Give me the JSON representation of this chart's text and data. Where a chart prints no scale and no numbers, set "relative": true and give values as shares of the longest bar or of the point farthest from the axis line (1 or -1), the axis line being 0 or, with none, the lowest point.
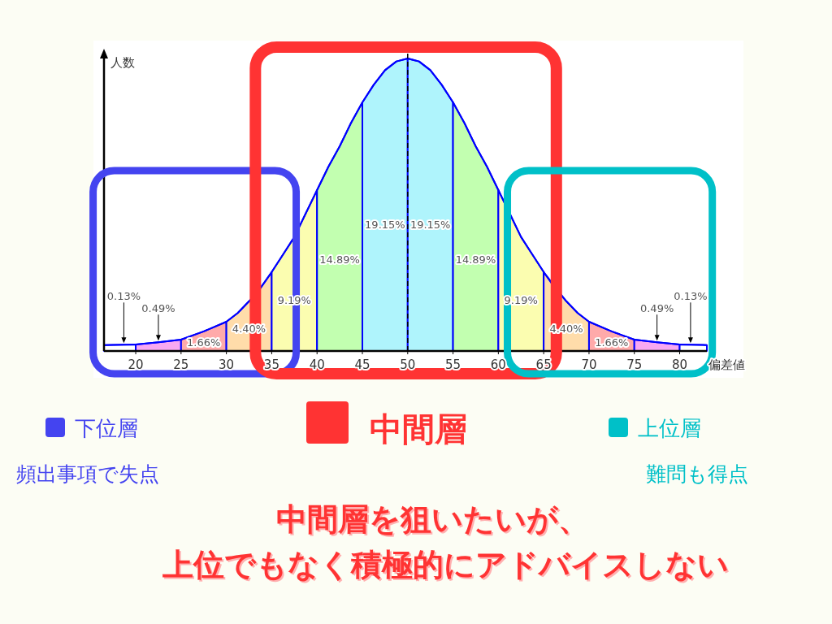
{
  "chart_data": {
    "type": "area",
    "relative": true,
    "ylabel": "人数",
    "xlabel": "偏差値",
    "xlim": [
      16.5,
      83
    ],
    "xticks": [
      20,
      25,
      30,
      35,
      40,
      45,
      50,
      55,
      60,
      65,
      70,
      75,
      80
    ],
    "series": [
      {
        "color": "#ffffff",
        "x": [
          16.5,
          17.5,
          20
        ],
        "values": [
          0.02,
          0.021,
          0.022
        ]
      },
      {
        "color": "#f9a8f2",
        "x": [
          20,
          22.5,
          25
        ],
        "values": [
          0.022,
          0.03,
          0.039
        ]
      },
      {
        "color": "#ffaaaa",
        "x": [
          25,
          27.5,
          30
        ],
        "values": [
          0.039,
          0.067,
          0.1
        ]
      },
      {
        "color": "#ffdcaa",
        "x": [
          30,
          31.25,
          32.5,
          33.75,
          35
        ],
        "values": [
          0.1,
          0.13,
          0.17,
          0.215,
          0.27
        ]
      },
      {
        "color": "#fbfdb0",
        "x": [
          35,
          36.25,
          37.5,
          38.75,
          40
        ],
        "values": [
          0.27,
          0.33,
          0.39,
          0.47,
          0.55
        ]
      },
      {
        "color": "#c2ffb0",
        "x": [
          40,
          41.25,
          42.5,
          43.75,
          45
        ],
        "values": [
          0.55,
          0.63,
          0.7,
          0.78,
          0.85
        ]
      },
      {
        "color": "#aff4fc",
        "x": [
          45,
          46.25,
          47.5,
          48.75,
          50
        ],
        "values": [
          0.85,
          0.91,
          0.96,
          0.99,
          1
        ]
      },
      {
        "color": "#aff4fc",
        "x": [
          50,
          51.25,
          52.5,
          53.75,
          55
        ],
        "values": [
          1,
          0.99,
          0.96,
          0.91,
          0.85
        ]
      },
      {
        "color": "#c2ffb0",
        "x": [
          55,
          56.25,
          57.5,
          58.75,
          60
        ],
        "values": [
          0.85,
          0.78,
          0.7,
          0.63,
          0.55
        ]
      },
      {
        "color": "#fbfdb0",
        "x": [
          60,
          61.25,
          62.5,
          63.75,
          65
        ],
        "values": [
          0.55,
          0.47,
          0.39,
          0.33,
          0.27
        ]
      },
      {
        "color": "#ffdcaa",
        "x": [
          65,
          66.25,
          67.5,
          68.75,
          70
        ],
        "values": [
          0.27,
          0.215,
          0.17,
          0.13,
          0.1
        ]
      },
      {
        "color": "#ffaaaa",
        "x": [
          70,
          72.5,
          75
        ],
        "values": [
          0.1,
          0.067,
          0.039
        ]
      },
      {
        "color": "#f9a8f2",
        "x": [
          75,
          77.5,
          80
        ],
        "values": [
          0.039,
          0.03,
          0.022
        ]
      },
      {
        "color": "#ffffff",
        "x": [
          80,
          82.5,
          83
        ],
        "values": [
          0.022,
          0.021,
          0.02
        ]
      },
      {
        "type": "line",
        "color": "#0000ff",
        "x": [
          16.5,
          17.5,
          20,
          22.5,
          25,
          27.5,
          30,
          31.25,
          32.5,
          33.75,
          35,
          36.25,
          37.5,
          38.75,
          40,
          41.25,
          42.5,
          43.75,
          45,
          46.25,
          47.5,
          48.75,
          50,
          51.25,
          52.5,
          53.75,
          55,
          56.25,
          57.5,
          58.75,
          60,
          61.25,
          62.5,
          63.75,
          65,
          66.25,
          67.5,
          68.75,
          70,
          72.5,
          75,
          77.5,
          80,
          82.5,
          83
        ],
        "values": [
          0.02,
          0.021,
          0.022,
          0.03,
          0.039,
          0.067,
          0.1,
          0.13,
          0.17,
          0.215,
          0.27,
          0.33,
          0.39,
          0.47,
          0.55,
          0.63,
          0.7,
          0.78,
          0.85,
          0.91,
          0.96,
          0.99,
          1,
          0.99,
          0.96,
          0.91,
          0.85,
          0.78,
          0.7,
          0.63,
          0.55,
          0.47,
          0.39,
          0.33,
          0.27,
          null,
          0.17,
          0.13,
          0.1,
          0.067,
          0.039,
          0.03,
          0.022,
          0.021,
          0.02
        ]
      }
    ],
    "ref_lines": [
      {
        "axis": "x",
        "value": 50,
        "line_style": "dashed",
        "color": "#000000"
      }
    ],
    "annotations": [
      "0.13%",
      "0.49%",
      "1.66%",
      "4.40%",
      "9.19%",
      "14.89%",
      "19.15%",
      "19.15%",
      "14.89%",
      "9.19%",
      "4.40%",
      "1.66%",
      "0.49%",
      "0.13%",
      "下位層",
      "中間層",
      "上位層",
      "頻出事項で失点",
      "難問も得点",
      "中間層を狙いたいが、",
      "上位でもなく積極的にアドバイスしない"
    ]
  }
}
